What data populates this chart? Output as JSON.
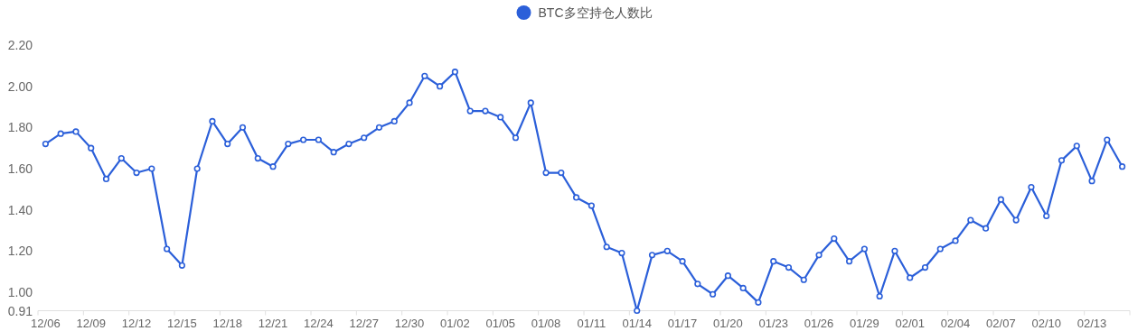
{
  "chart_data": {
    "type": "line",
    "legend": "top",
    "marker": "circle",
    "line_style": "solid",
    "grid": false,
    "categories": [
      "12/06",
      null,
      null,
      "12/09",
      null,
      null,
      "12/12",
      null,
      null,
      "12/15",
      null,
      null,
      "12/18",
      null,
      null,
      "12/21",
      null,
      null,
      "12/24",
      null,
      null,
      "12/27",
      null,
      null,
      "12/30",
      null,
      null,
      "01/02",
      null,
      null,
      "01/05",
      null,
      null,
      "01/08",
      null,
      null,
      "01/11",
      null,
      null,
      "01/14",
      null,
      null,
      "01/17",
      null,
      null,
      "01/20",
      null,
      null,
      "01/23",
      null,
      null,
      "01/26",
      null,
      null,
      "01/29",
      null,
      null,
      "02/01",
      null,
      null,
      "02/04",
      null,
      null,
      "02/07",
      null,
      null,
      "02/10",
      null,
      null,
      "02/13",
      null,
      null
    ],
    "ylim": [
      0.91,
      2.2
    ],
    "yticks": [
      {
        "value": 0.91,
        "label": "0.91"
      },
      {
        "value": 1.0,
        "label": "1.00"
      },
      {
        "value": 1.2,
        "label": "1.20"
      },
      {
        "value": 1.4,
        "label": "1.40"
      },
      {
        "value": 1.6,
        "label": "1.60"
      },
      {
        "value": 1.8,
        "label": "1.80"
      },
      {
        "value": 2.0,
        "label": "2.00"
      },
      {
        "value": 2.2,
        "label": "2.20"
      }
    ],
    "series": [
      {
        "name": "BTC多空持仓人数比",
        "color": "#2b5fd9",
        "values": [
          1.72,
          1.77,
          1.78,
          1.7,
          1.55,
          1.65,
          1.58,
          1.6,
          1.21,
          1.13,
          1.6,
          1.83,
          1.72,
          1.8,
          1.65,
          1.61,
          1.72,
          1.74,
          1.74,
          1.68,
          1.72,
          1.75,
          1.8,
          1.83,
          1.92,
          2.05,
          2.0,
          2.07,
          1.88,
          1.88,
          1.85,
          1.75,
          1.92,
          1.58,
          1.58,
          1.46,
          1.42,
          1.22,
          1.19,
          0.91,
          1.18,
          1.2,
          1.15,
          1.04,
          0.99,
          1.08,
          1.02,
          0.95,
          1.15,
          1.12,
          1.06,
          1.18,
          1.26,
          1.15,
          1.21,
          0.98,
          1.2,
          1.07,
          1.12,
          1.21,
          1.25,
          1.35,
          1.31,
          1.45,
          1.35,
          1.51,
          1.37,
          1.64,
          1.71,
          1.54,
          1.74,
          1.61
        ]
      }
    ]
  }
}
